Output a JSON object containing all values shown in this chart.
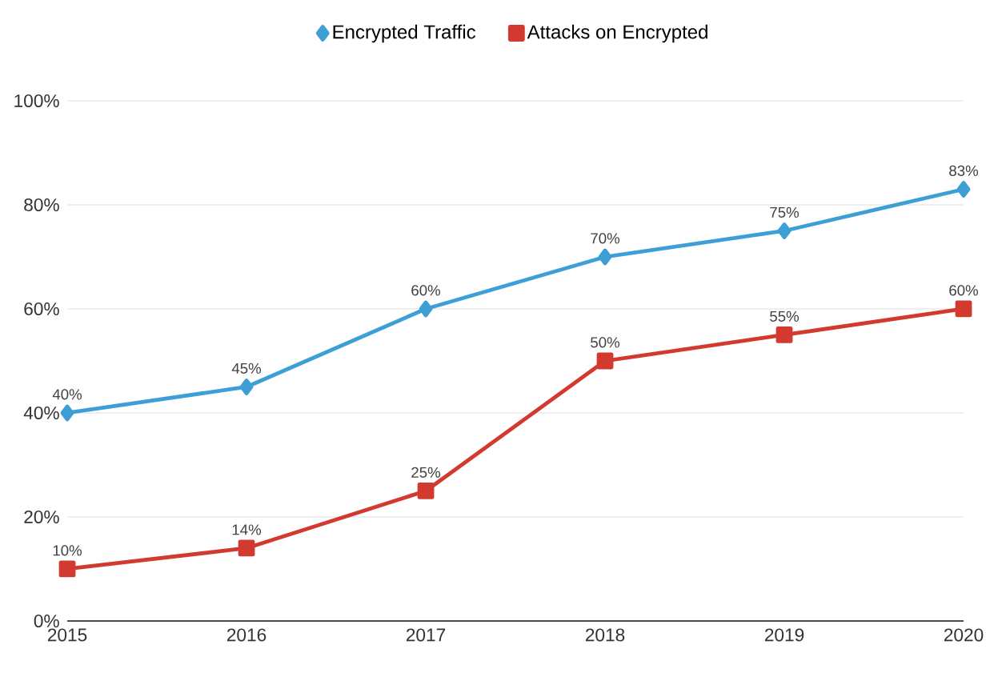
{
  "chart_data": {
    "type": "line",
    "x": [
      2015,
      2016,
      2017,
      2018,
      2019,
      2020
    ],
    "xlim": [
      2015,
      2020
    ],
    "xticks": [
      2015,
      2016,
      2017,
      2018,
      2019,
      2020
    ],
    "ylim": [
      0,
      100
    ],
    "yticks": [
      {
        "value": 0,
        "label": "0%"
      },
      {
        "value": 20,
        "label": "20%"
      },
      {
        "value": 40,
        "label": "40%"
      },
      {
        "value": 60,
        "label": "60%"
      },
      {
        "value": 80,
        "label": "80%"
      },
      {
        "value": 100,
        "label": "100%"
      }
    ],
    "grid": "y",
    "legend": "top",
    "line_style": "solid",
    "series": [
      {
        "name": "Encrypted Traffic",
        "color": "#3d9fd6",
        "marker": "diamond",
        "values": [
          40,
          45,
          60,
          70,
          75,
          83
        ],
        "value_labels": [
          "40%",
          "45%",
          "60%",
          "70%",
          "75%",
          "83%"
        ]
      },
      {
        "name": "Attacks on Encrypted",
        "color": "#d33a2f",
        "marker": "square",
        "values": [
          10,
          14,
          25,
          50,
          55,
          60
        ],
        "value_labels": [
          "10%",
          "14%",
          "25%",
          "50%",
          "55%",
          "60%"
        ]
      }
    ]
  }
}
